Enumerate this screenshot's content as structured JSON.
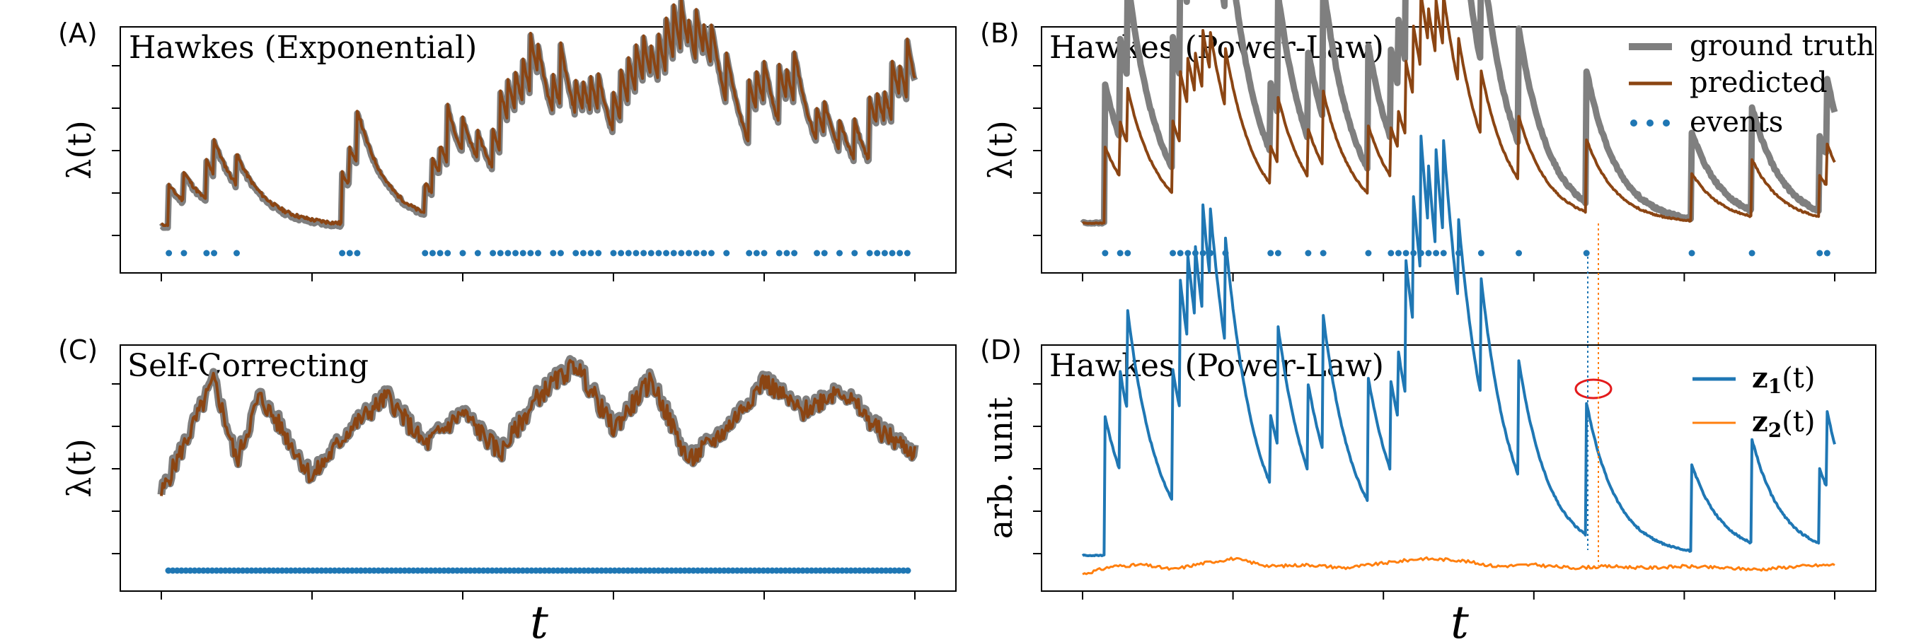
{
  "colors": {
    "ground_truth": "#7f7f7f",
    "predicted": "#8b4513",
    "events": "#1f77b4",
    "z1": "#1f77b4",
    "z2": "#ff7f0e",
    "highlight": "#e31a1c"
  },
  "chart_data": [
    {
      "panel": "(A)",
      "type": "line",
      "title": "Hawkes (Exponential)",
      "xlabel": "",
      "ylabel": "λ(t)",
      "grid": false,
      "series": [
        {
          "name": "ground truth",
          "x": [
            0,
            4,
            8,
            12,
            20,
            40,
            41,
            43,
            45,
            48,
            56,
            57,
            60,
            64,
            66,
            68,
            70,
            72,
            75,
            78,
            80,
            82,
            84,
            86,
            88,
            90,
            94,
            97,
            98,
            100
          ],
          "y": [
            0.05,
            0.15,
            0.1,
            0.3,
            0.05,
            0.05,
            0.55,
            0.35,
            0.15,
            0.08,
            0.12,
            0.3,
            0.4,
            0.5,
            1.1,
            0.7,
            0.45,
            0.3,
            0.6,
            0.5,
            0.75,
            1.0,
            0.6,
            0.35,
            0.3,
            0.2,
            0.1,
            0.8,
            1.05,
            0.6
          ]
        },
        {
          "name": "predicted",
          "x": [
            0,
            4,
            8,
            12,
            20,
            40,
            41,
            43,
            45,
            48,
            56,
            57,
            60,
            64,
            66,
            68,
            70,
            72,
            75,
            78,
            80,
            82,
            84,
            86,
            88,
            90,
            94,
            97,
            98,
            100
          ],
          "y": [
            0.05,
            0.17,
            0.12,
            0.32,
            0.06,
            0.05,
            0.58,
            0.37,
            0.16,
            0.09,
            0.13,
            0.32,
            0.42,
            0.55,
            1.15,
            0.72,
            0.47,
            0.32,
            0.62,
            0.53,
            0.78,
            1.08,
            0.63,
            0.37,
            0.32,
            0.22,
            0.12,
            0.85,
            1.25,
            0.7
          ]
        }
      ],
      "events": [
        1,
        3,
        6,
        7,
        10,
        24,
        25,
        26,
        35,
        36,
        37,
        38,
        40,
        42,
        44,
        45,
        46,
        47,
        48,
        49,
        50,
        52,
        53,
        55,
        56,
        57,
        58,
        60,
        61,
        62,
        63,
        64,
        65,
        66,
        67,
        68,
        69,
        70,
        71,
        72,
        73,
        75,
        78,
        79,
        80,
        82,
        83,
        84,
        87,
        88,
        90,
        92,
        94,
        95,
        96,
        97,
        98,
        99
      ]
    },
    {
      "panel": "(B)",
      "type": "line",
      "title": "Hawkes (Power-Law)",
      "xlabel": "",
      "ylabel": "λ(t)",
      "grid": false,
      "legend": {
        "placement": "top-right",
        "entries": [
          "ground truth",
          "predicted",
          "events"
        ]
      },
      "series": [
        {
          "name": "ground truth",
          "x": [
            0,
            4,
            4.5,
            7,
            9,
            13,
            18,
            25,
            30,
            36,
            42,
            46,
            46.5,
            49,
            52,
            57,
            62,
            67,
            75,
            80,
            85,
            90,
            95,
            98,
            100
          ],
          "y": [
            0.1,
            0.1,
            0.9,
            0.6,
            0.8,
            0.7,
            0.5,
            0.35,
            0.6,
            0.35,
            0.55,
            1.1,
            0.9,
            0.4,
            0.45,
            0.35,
            0.45,
            0.45,
            0.5,
            0.45,
            0.45,
            0.35,
            0.5,
            0.7,
            0.1
          ]
        },
        {
          "name": "predicted",
          "x": [
            0,
            4,
            4.5,
            7,
            9,
            13,
            18,
            25,
            30,
            36,
            42,
            46,
            46.5,
            49,
            52,
            57,
            62,
            67,
            75,
            80,
            85,
            90,
            95,
            98,
            100
          ],
          "y": [
            0.12,
            0.12,
            0.7,
            0.45,
            0.55,
            0.45,
            0.3,
            0.2,
            0.35,
            0.2,
            0.3,
            0.7,
            0.55,
            0.25,
            0.3,
            0.22,
            0.3,
            0.28,
            0.3,
            0.28,
            0.28,
            0.22,
            0.3,
            0.45,
            0.12
          ]
        }
      ],
      "events": [
        3,
        5,
        6,
        12,
        13,
        14,
        15,
        16,
        17,
        19,
        25,
        26,
        30,
        32,
        38,
        41,
        42,
        43,
        44,
        45,
        46,
        47,
        48,
        50,
        53,
        58,
        67,
        81,
        89,
        98,
        99
      ]
    },
    {
      "panel": "(C)",
      "type": "line",
      "title": "Self-Correcting",
      "xlabel": "t",
      "ylabel": "λ(t)",
      "grid": false,
      "series": [
        {
          "name": "ground truth",
          "x": [
            0,
            3,
            7,
            10,
            13,
            16,
            20,
            25,
            30,
            35,
            40,
            45,
            50,
            55,
            60,
            65,
            70,
            75,
            80,
            85,
            90,
            95,
            100
          ],
          "y": [
            0.1,
            0.4,
            0.8,
            0.3,
            0.7,
            0.5,
            0.2,
            0.5,
            0.7,
            0.4,
            0.6,
            0.35,
            0.7,
            0.9,
            0.5,
            0.8,
            0.3,
            0.5,
            0.8,
            0.6,
            0.75,
            0.5,
            0.35
          ]
        },
        {
          "name": "predicted",
          "x": [
            0,
            3,
            7,
            10,
            13,
            16,
            20,
            25,
            30,
            35,
            40,
            45,
            50,
            55,
            60,
            65,
            70,
            75,
            80,
            85,
            90,
            95,
            100
          ],
          "y": [
            0.1,
            0.42,
            0.78,
            0.32,
            0.68,
            0.5,
            0.22,
            0.48,
            0.68,
            0.42,
            0.58,
            0.37,
            0.68,
            0.88,
            0.52,
            0.78,
            0.32,
            0.5,
            0.78,
            0.6,
            0.72,
            0.52,
            0.37
          ]
        }
      ],
      "events": "dense, evenly spaced across the full t range"
    },
    {
      "panel": "(D)",
      "type": "line",
      "title": "Hawkes (Power-Law)",
      "xlabel": "t",
      "ylabel": "arb. unit",
      "grid": false,
      "legend": {
        "placement": "top-right",
        "entries": [
          "z1(t)",
          "z2(t)"
        ]
      },
      "series": [
        {
          "name": "z1(t)",
          "x": [
            0,
            4,
            4.5,
            7,
            9,
            13,
            18,
            25,
            30,
            36,
            42,
            46,
            46.5,
            49,
            52,
            57,
            62,
            67,
            75,
            80,
            85,
            90,
            95,
            98,
            100
          ],
          "y": [
            0.1,
            0.1,
            0.45,
            0.35,
            0.55,
            0.5,
            0.3,
            0.25,
            0.3,
            0.2,
            0.3,
            0.65,
            0.55,
            0.25,
            0.3,
            0.2,
            0.25,
            0.2,
            0.2,
            0.2,
            0.2,
            0.15,
            0.25,
            0.5,
            0.25
          ]
        },
        {
          "name": "z2(t)",
          "x": [
            0,
            4,
            8,
            12,
            16,
            20,
            25,
            30,
            35,
            40,
            45,
            50,
            55,
            60,
            65,
            70,
            75,
            80,
            85,
            90,
            95,
            100
          ],
          "y": [
            0.0,
            0.05,
            0.06,
            0.03,
            0.07,
            0.1,
            0.05,
            0.06,
            0.04,
            0.07,
            0.1,
            0.09,
            0.05,
            0.06,
            0.04,
            0.05,
            0.04,
            0.05,
            0.04,
            0.03,
            0.05,
            0.06
          ]
        }
      ]
    }
  ],
  "legend_labels": {
    "ground_truth": "ground truth",
    "predicted": "predicted",
    "events": "events",
    "z1": "z",
    "z1_sub": "1",
    "z1_tail": "(t)",
    "z2": "z",
    "z2_sub": "2",
    "z2_tail": "(t)"
  },
  "panel_letters": {
    "a": "(A)",
    "b": "(B)",
    "c": "(C)",
    "d": "(D)"
  },
  "titles": {
    "a": "Hawkes (Exponential)",
    "b": "Hawkes (Power-Law)",
    "c": "Self-Correcting",
    "d": "Hawkes (Power-Law)"
  },
  "ylabels": {
    "lambda": "λ(t)",
    "arb": "arb. unit"
  },
  "xlabel": "t"
}
